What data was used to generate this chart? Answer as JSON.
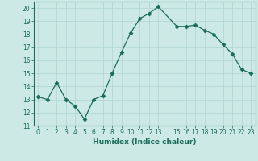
{
  "x": [
    0,
    1,
    2,
    3,
    4,
    5,
    6,
    7,
    8,
    9,
    10,
    11,
    12,
    13,
    15,
    16,
    17,
    18,
    19,
    20,
    21,
    22,
    23
  ],
  "y": [
    13.2,
    13.0,
    14.3,
    13.0,
    12.5,
    11.5,
    13.0,
    13.3,
    15.0,
    16.6,
    18.1,
    19.2,
    19.6,
    20.1,
    18.6,
    18.6,
    18.7,
    18.3,
    18.0,
    17.2,
    16.5,
    15.3,
    15.0
  ],
  "xlabel": "Humidex (Indice chaleur)",
  "xlim": [
    -0.5,
    23.5
  ],
  "ylim": [
    11,
    20.5
  ],
  "yticks": [
    11,
    12,
    13,
    14,
    15,
    16,
    17,
    18,
    19,
    20
  ],
  "xticks": [
    0,
    1,
    2,
    3,
    4,
    5,
    6,
    7,
    8,
    9,
    10,
    11,
    12,
    13,
    15,
    16,
    17,
    18,
    19,
    20,
    21,
    22,
    23
  ],
  "line_color": "#1a6b5a",
  "marker": "D",
  "marker_size": 2.5,
  "bg_color": "#cce9e5",
  "grid_color": "#b0d4d0",
  "label_fontsize": 6.5,
  "tick_fontsize": 5.5
}
